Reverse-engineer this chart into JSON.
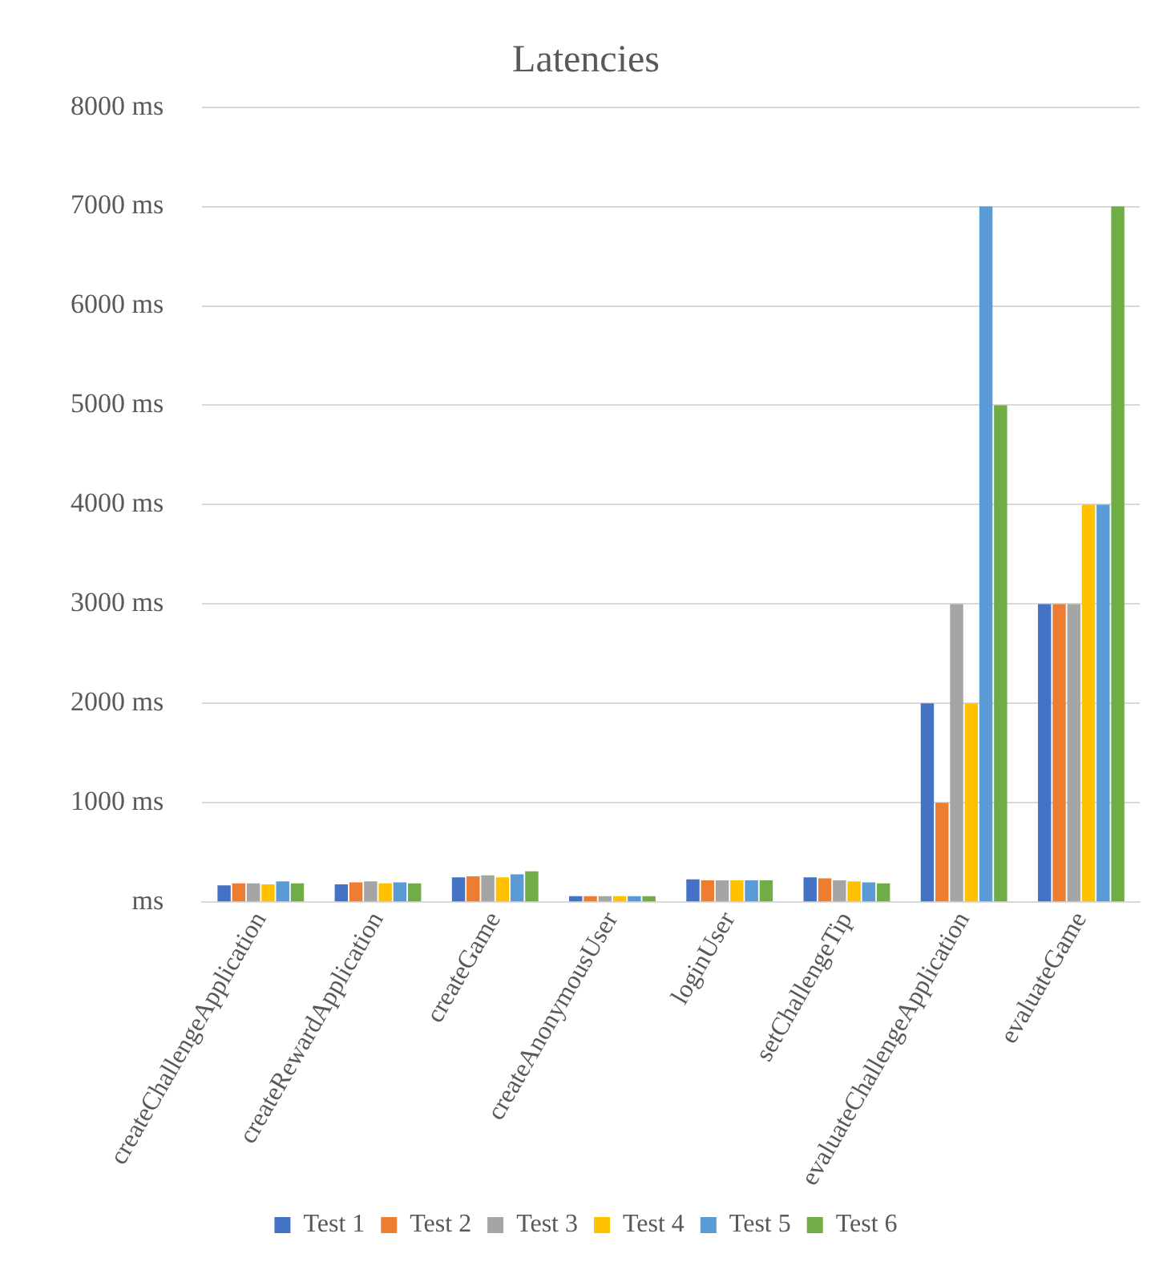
{
  "chart_data": {
    "type": "bar",
    "title": "Latencies",
    "categories": [
      "createChallengeApplication",
      "createRewardApplication",
      "createGame",
      "createAnonymousUser",
      "loginUser",
      "setChallengeTip",
      "evaluateChallengeApplication",
      "evaluateGame"
    ],
    "series": [
      {
        "name": "Test 1",
        "color": "#4472c4",
        "values": [
          170,
          180,
          250,
          60,
          230,
          250,
          2000,
          3000
        ]
      },
      {
        "name": "Test 2",
        "color": "#ed7d31",
        "values": [
          190,
          200,
          260,
          60,
          220,
          240,
          1000,
          3000
        ]
      },
      {
        "name": "Test 3",
        "color": "#a5a5a5",
        "values": [
          190,
          210,
          270,
          60,
          220,
          220,
          3000,
          3000
        ]
      },
      {
        "name": "Test 4",
        "color": "#ffc000",
        "values": [
          180,
          190,
          250,
          60,
          220,
          210,
          2000,
          4000
        ]
      },
      {
        "name": "Test 5",
        "color": "#5b9bd5",
        "values": [
          210,
          200,
          280,
          60,
          220,
          200,
          7000,
          4000
        ]
      },
      {
        "name": "Test 6",
        "color": "#70ad47",
        "values": [
          190,
          190,
          310,
          60,
          220,
          190,
          5000,
          7000
        ]
      }
    ],
    "ylim": [
      0,
      8000
    ],
    "yticks": [
      {
        "value": 0,
        "label": "ms"
      },
      {
        "value": 1000,
        "label": "1000 ms"
      },
      {
        "value": 2000,
        "label": "2000 ms"
      },
      {
        "value": 3000,
        "label": "3000 ms"
      },
      {
        "value": 4000,
        "label": "4000 ms"
      },
      {
        "value": 5000,
        "label": "5000 ms"
      },
      {
        "value": 6000,
        "label": "6000 ms"
      },
      {
        "value": 7000,
        "label": "7000 ms"
      },
      {
        "value": 8000,
        "label": "8000 ms"
      }
    ],
    "grid": "y",
    "legend": "bottom"
  }
}
